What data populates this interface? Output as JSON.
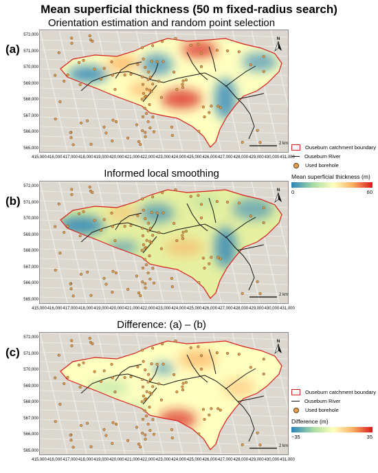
{
  "main_title": "Mean superficial thickness (50 m fixed-radius search)",
  "panels": [
    {
      "letter": "(a)",
      "title": "Orientation estimation and random point selection",
      "variant": "a"
    },
    {
      "letter": "(b)",
      "title": "Informed local smoothing",
      "variant": "b"
    },
    {
      "letter": "(c)",
      "title": "Difference: (a) – (b)",
      "variant": "c"
    }
  ],
  "y_ticks": [
    "572,000",
    "571,000",
    "570,000",
    "569,000",
    "568,000",
    "567,000",
    "566,000",
    "565,000"
  ],
  "x_ticks": [
    "415,000",
    "416,000",
    "417,000",
    "418,000",
    "419,000",
    "420,000",
    "421,000",
    "422,000",
    "423,000",
    "424,000",
    "425,000",
    "426,000",
    "427,000",
    "428,000",
    "429,000",
    "430,000",
    "431,000"
  ],
  "north_label": "N",
  "scale_label": "2 km",
  "legend_top": {
    "boundary": "Ouseburn catchment boundary",
    "river": "Ouseburn River",
    "borehole": "Used borehole",
    "colorbar_title": "Mean superficial thickness (m)",
    "min": "0",
    "max": "60"
  },
  "legend_bottom": {
    "boundary": "Ouseburn catchment boundary",
    "river": "Ouseburn River",
    "borehole": "Used borehole",
    "colorbar_title": "Difference (m)",
    "min": "−35",
    "max": "35"
  },
  "colors": {
    "boundary": "#d81b1b",
    "river": "#111111",
    "borehole_fill": "#e8a050",
    "ramp": [
      "#2b83ba",
      "#abdda4",
      "#ffffbf",
      "#fdae61",
      "#d7191c"
    ]
  }
}
